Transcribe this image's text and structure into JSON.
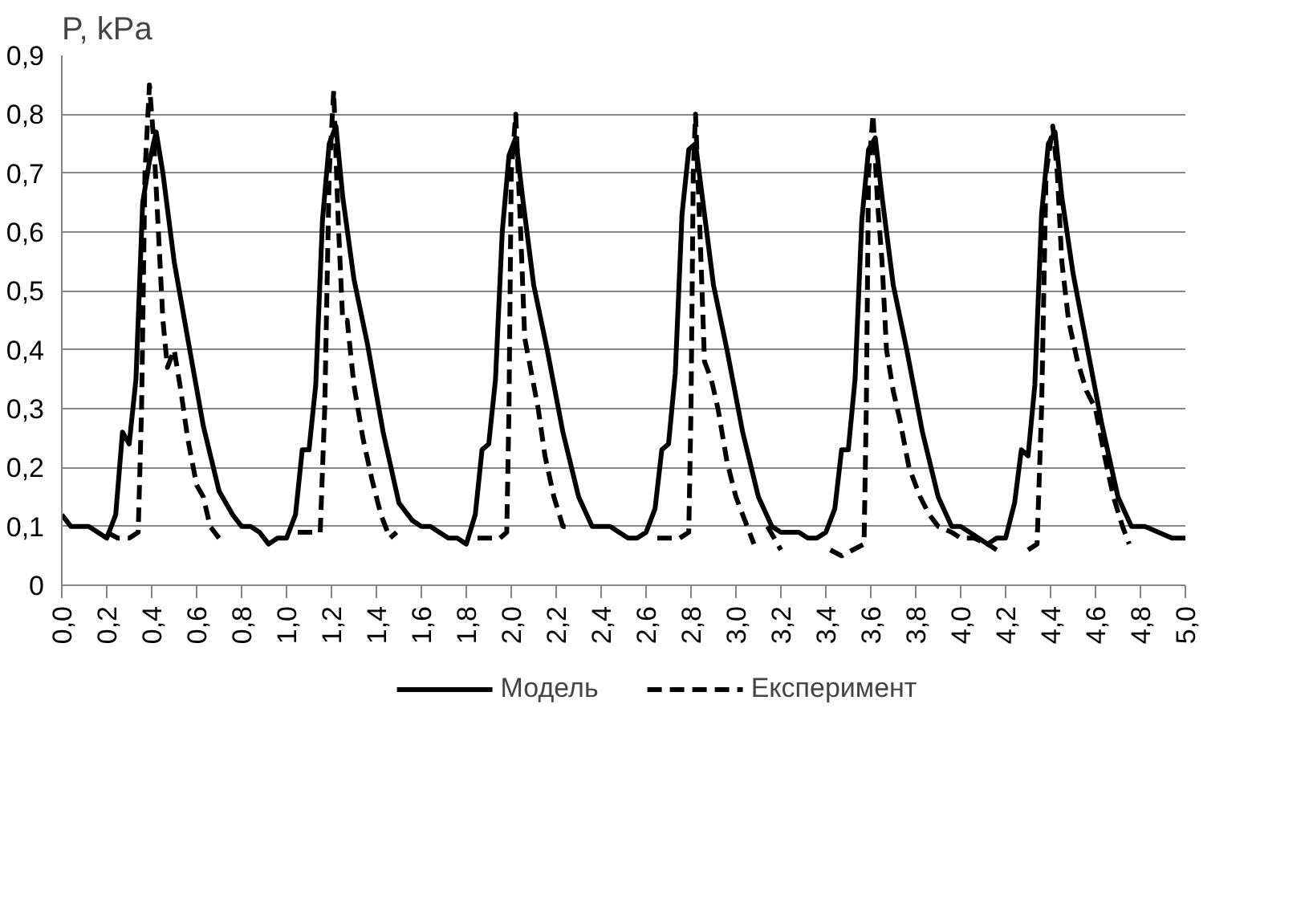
{
  "chart_data": {
    "type": "line",
    "ylabel": "P, kPa",
    "xlim": [
      0,
      5
    ],
    "ylim": [
      0,
      0.9
    ],
    "xticks": [
      {
        "value": 0,
        "label": "0,0"
      },
      {
        "value": 0.2,
        "label": "0,2"
      },
      {
        "value": 0.4,
        "label": "0,4"
      },
      {
        "value": 0.6,
        "label": "0,6"
      },
      {
        "value": 0.8,
        "label": "0,8"
      },
      {
        "value": 1.0,
        "label": "1,0"
      },
      {
        "value": 1.2,
        "label": "1,2"
      },
      {
        "value": 1.4,
        "label": "1,4"
      },
      {
        "value": 1.6,
        "label": "1,6"
      },
      {
        "value": 1.8,
        "label": "1,8"
      },
      {
        "value": 2.0,
        "label": "2,0"
      },
      {
        "value": 2.2,
        "label": "2,2"
      },
      {
        "value": 2.4,
        "label": "2,4"
      },
      {
        "value": 2.6,
        "label": "2,6"
      },
      {
        "value": 2.8,
        "label": "2,8"
      },
      {
        "value": 3.0,
        "label": "3,0"
      },
      {
        "value": 3.2,
        "label": "3,2"
      },
      {
        "value": 3.4,
        "label": "3,4"
      },
      {
        "value": 3.6,
        "label": "3,6"
      },
      {
        "value": 3.8,
        "label": "3,8"
      },
      {
        "value": 4.0,
        "label": "4,0"
      },
      {
        "value": 4.2,
        "label": "4,2"
      },
      {
        "value": 4.4,
        "label": "4,4"
      },
      {
        "value": 4.6,
        "label": "4,6"
      },
      {
        "value": 4.8,
        "label": "4,8"
      },
      {
        "value": 5.0,
        "label": "5,0"
      }
    ],
    "yticks": [
      0,
      {
        "value": 0.1,
        "label": "0,1"
      },
      {
        "value": 0.2,
        "label": "0,2"
      },
      {
        "value": 0.3,
        "label": "0,3"
      },
      {
        "value": 0.4,
        "label": "0,4"
      },
      {
        "value": 0.5,
        "label": "0,5"
      },
      {
        "value": 0.6,
        "label": "0,6"
      },
      {
        "value": 0.7,
        "label": "0,7"
      },
      {
        "value": 0.8,
        "label": "0,8"
      },
      {
        "value": 0.9,
        "label": "0,9"
      }
    ],
    "grid": "y",
    "legend": "bottom",
    "series": [
      {
        "name": "Модель",
        "color": "#000000",
        "line_style": "solid",
        "x": [
          0.0,
          0.04,
          0.08,
          0.12,
          0.16,
          0.2,
          0.24,
          0.27,
          0.3,
          0.33,
          0.36,
          0.39,
          0.42,
          0.45,
          0.5,
          0.56,
          0.63,
          0.7,
          0.76,
          0.8,
          0.84,
          0.88,
          0.92,
          0.96,
          1.0,
          1.04,
          1.07,
          1.1,
          1.13,
          1.16,
          1.19,
          1.22,
          1.25,
          1.3,
          1.36,
          1.43,
          1.5,
          1.56,
          1.6,
          1.64,
          1.68,
          1.72,
          1.76,
          1.8,
          1.84,
          1.87,
          1.9,
          1.93,
          1.96,
          1.99,
          2.02,
          2.05,
          2.1,
          2.16,
          2.23,
          2.3,
          2.36,
          2.4,
          2.44,
          2.48,
          2.52,
          2.56,
          2.6,
          2.64,
          2.67,
          2.7,
          2.73,
          2.76,
          2.79,
          2.82,
          2.85,
          2.9,
          2.96,
          3.03,
          3.1,
          3.16,
          3.2,
          3.24,
          3.28,
          3.32,
          3.36,
          3.4,
          3.44,
          3.47,
          3.5,
          3.53,
          3.56,
          3.59,
          3.62,
          3.65,
          3.7,
          3.76,
          3.83,
          3.9,
          3.96,
          4.0,
          4.04,
          4.08,
          4.12,
          4.16,
          4.2,
          4.24,
          4.27,
          4.3,
          4.33,
          4.36,
          4.39,
          4.42,
          4.45,
          4.5,
          4.56,
          4.63,
          4.7,
          4.76,
          4.82,
          4.88,
          4.94,
          5.0
        ],
        "values": [
          0.12,
          0.1,
          0.1,
          0.1,
          0.09,
          0.08,
          0.12,
          0.26,
          0.24,
          0.35,
          0.65,
          0.72,
          0.77,
          0.7,
          0.55,
          0.42,
          0.27,
          0.16,
          0.12,
          0.1,
          0.1,
          0.09,
          0.07,
          0.08,
          0.08,
          0.12,
          0.23,
          0.23,
          0.34,
          0.62,
          0.75,
          0.78,
          0.66,
          0.52,
          0.41,
          0.26,
          0.14,
          0.11,
          0.1,
          0.1,
          0.09,
          0.08,
          0.08,
          0.07,
          0.12,
          0.23,
          0.24,
          0.35,
          0.6,
          0.73,
          0.76,
          0.66,
          0.51,
          0.4,
          0.26,
          0.15,
          0.1,
          0.1,
          0.1,
          0.09,
          0.08,
          0.08,
          0.09,
          0.13,
          0.23,
          0.24,
          0.36,
          0.63,
          0.74,
          0.75,
          0.66,
          0.51,
          0.4,
          0.26,
          0.15,
          0.1,
          0.09,
          0.09,
          0.09,
          0.08,
          0.08,
          0.09,
          0.13,
          0.23,
          0.23,
          0.35,
          0.62,
          0.74,
          0.76,
          0.66,
          0.51,
          0.4,
          0.26,
          0.15,
          0.1,
          0.1,
          0.09,
          0.08,
          0.07,
          0.08,
          0.08,
          0.14,
          0.23,
          0.22,
          0.34,
          0.63,
          0.75,
          0.77,
          0.66,
          0.53,
          0.41,
          0.27,
          0.15,
          0.1,
          0.1,
          0.09,
          0.08,
          0.08
        ]
      },
      {
        "name": "Експеримент",
        "color": "#000000",
        "line_style": "dashed",
        "x": [
          0.2,
          0.25,
          0.3,
          0.34,
          0.355,
          0.37,
          0.39,
          0.41,
          0.43,
          0.45,
          0.47,
          0.5,
          0.53,
          0.56,
          0.6,
          0.63,
          0.66,
          0.7,
          0.75,
          1.05,
          1.1,
          1.15,
          1.17,
          1.19,
          1.21,
          1.23,
          1.25,
          1.27,
          1.3,
          1.34,
          1.38,
          1.42,
          1.46,
          1.49,
          1.6,
          1.85,
          1.9,
          1.95,
          1.98,
          1.99,
          2.0,
          2.02,
          2.04,
          2.06,
          2.09,
          2.12,
          2.15,
          2.19,
          2.23,
          2.26,
          2.4,
          2.65,
          2.7,
          2.75,
          2.79,
          2.8,
          2.81,
          2.82,
          2.84,
          2.86,
          2.89,
          2.92,
          2.96,
          3.0,
          3.05,
          3.08,
          3.1,
          3.14,
          3.2,
          3.3,
          3.42,
          3.47,
          3.52,
          3.57,
          3.58,
          3.59,
          3.61,
          3.63,
          3.65,
          3.67,
          3.7,
          3.73,
          3.77,
          3.82,
          3.86,
          3.9,
          3.96,
          4.0,
          4.06,
          4.12,
          4.16,
          4.25,
          4.3,
          4.34,
          4.36,
          4.38,
          4.41,
          4.43,
          4.45,
          4.48,
          4.52,
          4.56,
          4.6,
          4.64,
          4.68,
          4.72,
          4.75
        ],
        "values": [
          0.09,
          0.08,
          0.08,
          0.09,
          0.3,
          0.7,
          0.85,
          0.75,
          0.6,
          0.45,
          0.37,
          0.4,
          0.33,
          0.25,
          0.17,
          0.15,
          0.1,
          0.08,
          null,
          0.09,
          0.09,
          0.09,
          0.3,
          0.7,
          0.84,
          0.62,
          0.45,
          0.45,
          0.34,
          0.25,
          0.18,
          0.12,
          0.08,
          0.09,
          null,
          0.08,
          0.08,
          0.08,
          0.09,
          0.3,
          0.7,
          0.8,
          0.62,
          0.42,
          0.36,
          0.3,
          0.22,
          0.15,
          0.1,
          0.1,
          null,
          0.08,
          0.08,
          0.08,
          0.09,
          0.3,
          0.7,
          0.8,
          0.6,
          0.38,
          0.35,
          0.3,
          0.21,
          0.15,
          0.1,
          0.07,
          null,
          0.1,
          0.06,
          null,
          0.06,
          0.05,
          0.06,
          0.07,
          0.3,
          0.7,
          0.8,
          0.65,
          0.55,
          0.4,
          0.33,
          0.28,
          0.2,
          0.15,
          0.12,
          0.1,
          0.09,
          0.08,
          0.08,
          0.07,
          0.06,
          null,
          0.06,
          0.07,
          0.3,
          0.7,
          0.78,
          0.7,
          0.55,
          0.45,
          0.38,
          0.33,
          0.3,
          0.22,
          0.15,
          0.1,
          0.07
        ]
      }
    ]
  }
}
